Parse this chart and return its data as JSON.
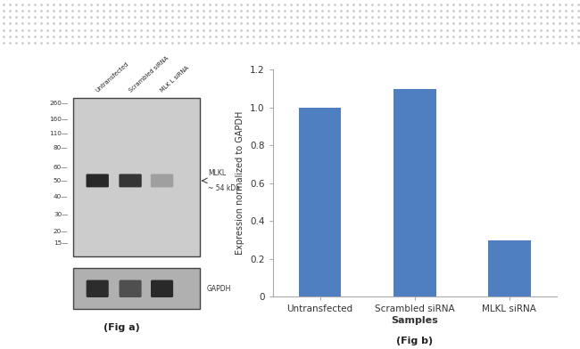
{
  "bar_categories": [
    "Untransfected",
    "Scrambled siRNA",
    "MLKL siRNA"
  ],
  "bar_values": [
    1.0,
    1.1,
    0.3
  ],
  "bar_color": "#4f7fc0",
  "ylabel": "Expression normalized to GAPDH",
  "xlabel": "Samples",
  "ylim": [
    0,
    1.2
  ],
  "yticks": [
    0,
    0.2,
    0.4,
    0.6,
    0.8,
    1.0,
    1.2
  ],
  "fig_b_caption": "(Fig b)",
  "fig_a_caption": "(Fig a)",
  "wb_label_untransfected": "Untransfected",
  "wb_label_scrambled": "Scrambled siRNA",
  "wb_label_mlkl": "MLK L siRNA",
  "wb_marker_label_line1": "MLKL",
  "wb_marker_label_line2": "~ 54 kDa",
  "gapdh_label": "GAPDH",
  "mw_markers": [
    260,
    160,
    110,
    80,
    60,
    50,
    40,
    30,
    20,
    15
  ],
  "background_color": "#ffffff",
  "gel_color": "#cccccc",
  "gapdh_box_color": "#b0b0b0",
  "band_dark": "#1a1a1a",
  "band_medium": "#3a3a3a",
  "band_faint": "#888888",
  "dot_color": "#c8c8c8",
  "mw_text_color": "#333333",
  "spine_color": "#aaaaaa"
}
